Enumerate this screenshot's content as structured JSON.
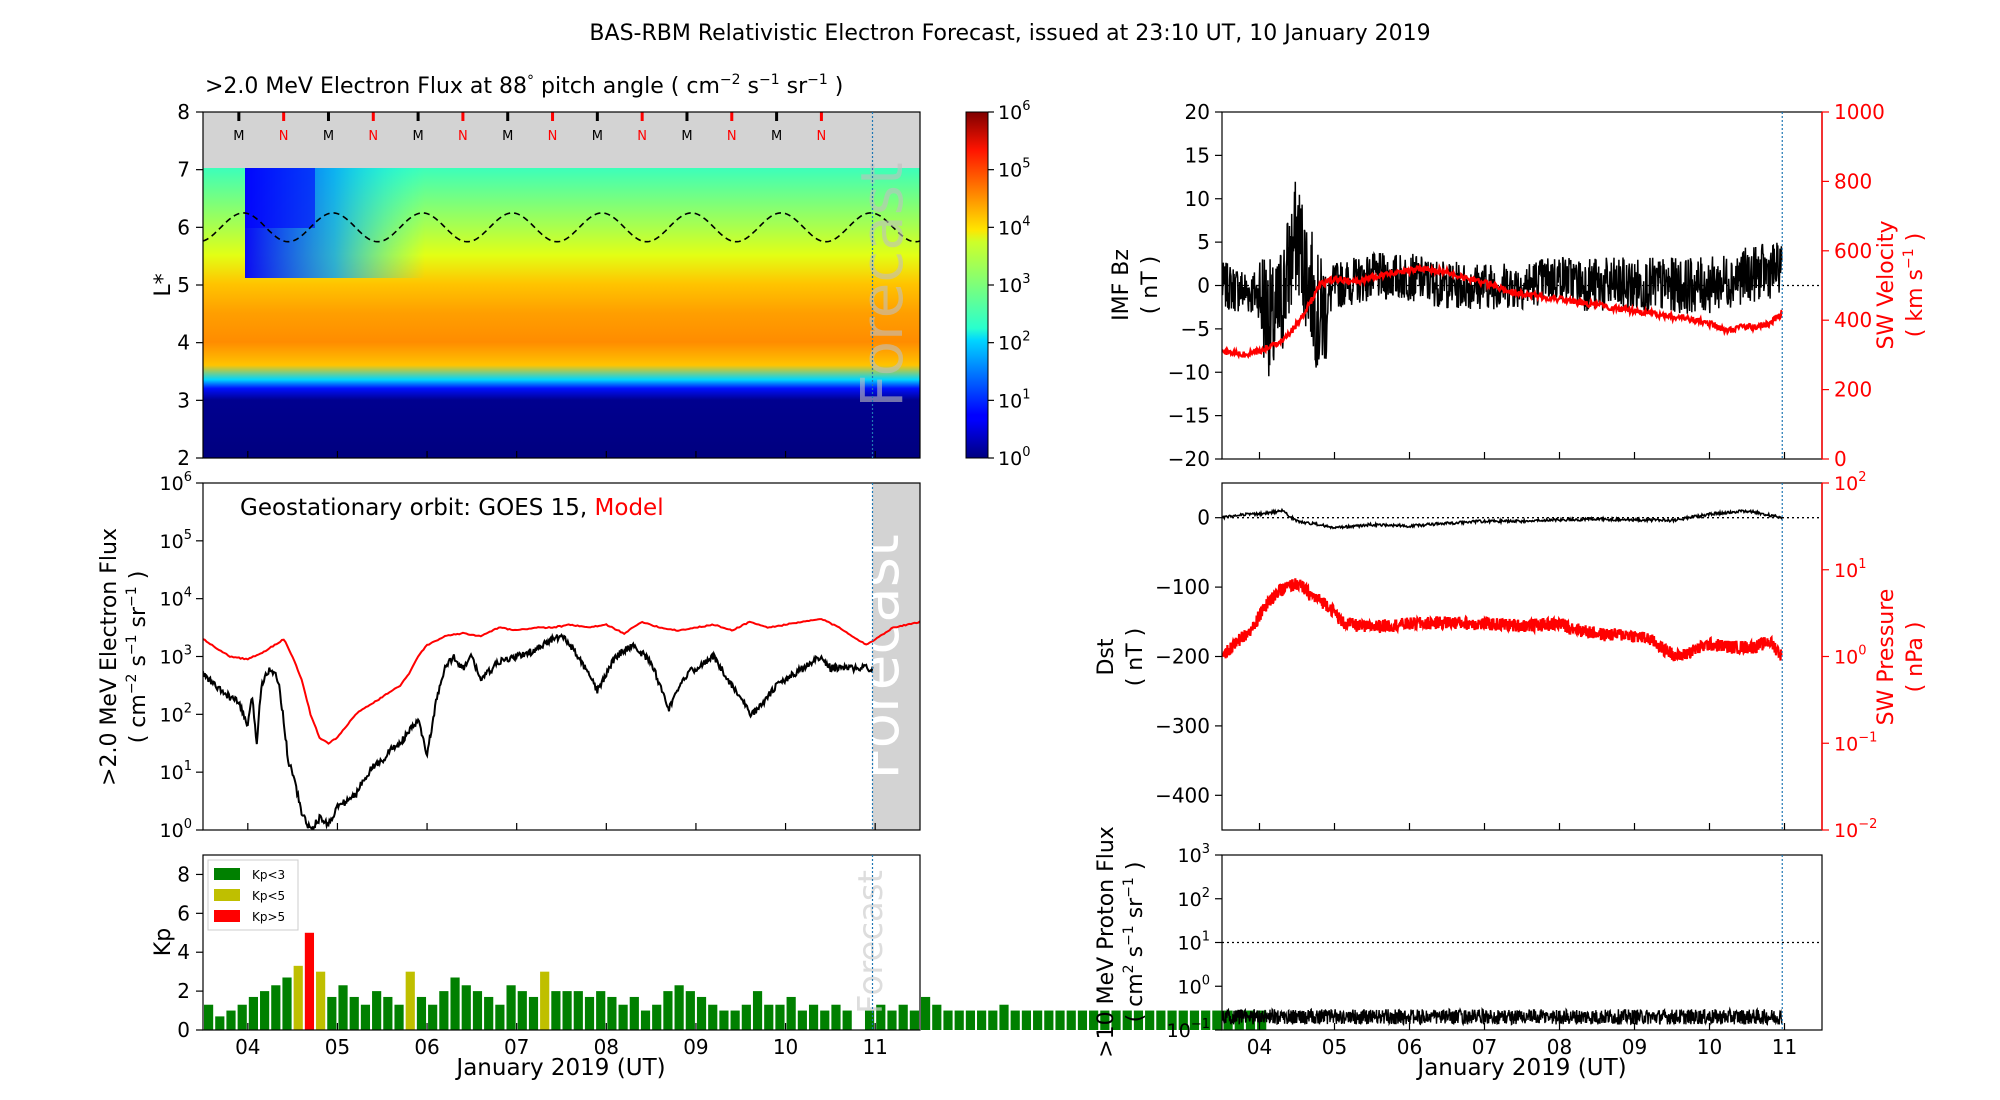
{
  "title": "BAS-RBM Relativistic Electron Forecast, issued at 23:10 UT, 10 January 2019",
  "xaxis": {
    "label": "January 2019 (UT)",
    "ticks": [
      "04",
      "05",
      "06",
      "07",
      "08",
      "09",
      "10",
      "11"
    ],
    "range_days": [
      3.5,
      11.5
    ],
    "issue_time_day": 10.97
  },
  "panels": {
    "lstar": {
      "title_main": ">2.0 MeV Electron Flux at 88",
      "title_deg": "°",
      "title_rest": " pitch angle ( cm",
      "title_u1": "−2",
      "title_s": " s",
      "title_u2": "−1",
      "title_sr": " sr",
      "title_u3": "−1",
      "title_end": " )",
      "ylabel": "L*",
      "yticks": [
        "2",
        "3",
        "4",
        "5",
        "6",
        "7",
        "8"
      ],
      "forecast_label": "Forecast",
      "mn_markers": [
        "M",
        "N",
        "M",
        "N",
        "M",
        "N",
        "M",
        "N",
        "M",
        "N",
        "M",
        "N",
        "M",
        "N"
      ],
      "colorbar_ticks": [
        "10",
        "10",
        "10",
        "10",
        "10",
        "10",
        "10"
      ],
      "colorbar_exps": [
        "0",
        "1",
        "2",
        "3",
        "4",
        "5",
        "6"
      ]
    },
    "geo": {
      "ylabel_line1": ">2.0 MeV Electron Flux",
      "ylabel_line2a": "( cm",
      "ylabel_line2b": "−2",
      "ylabel_line2c": " s",
      "ylabel_line2d": "−1",
      "ylabel_line2e": " sr",
      "ylabel_line2f": "−1",
      "ylabel_line2g": " )",
      "legend_prefix": "Geostationary orbit:   GOES 15,",
      "legend_model": "Model",
      "forecast_label": "Forecast",
      "ytick_base": "10",
      "ytick_exps": [
        "0",
        "1",
        "2",
        "3",
        "4",
        "5",
        "6"
      ]
    },
    "kp": {
      "ylabel": "Kp",
      "yticks": [
        "0",
        "2",
        "4",
        "6",
        "8"
      ],
      "forecast_label": "Forecast",
      "legend": [
        "Kp<3",
        "Kp<5",
        "Kp>5"
      ]
    },
    "imf": {
      "ylabel_line1": "IMF Bz",
      "ylabel_line2": "( nT )",
      "yticks_left": [
        "−20",
        "−15",
        "−10",
        "−5",
        "0",
        "5",
        "10",
        "15",
        "20"
      ],
      "ylabel_right_line1": "SW Velocity",
      "ylabel_right_line2": "( km s",
      "ylabel_right_exp": "−1",
      "ylabel_right_end": " )",
      "yticks_right": [
        "0",
        "200",
        "400",
        "600",
        "800",
        "1000"
      ]
    },
    "dst": {
      "ylabel_line1": "Dst",
      "ylabel_line2": "( nT )",
      "yticks_left": [
        "−400",
        "−300",
        "−200",
        "−100",
        "0"
      ],
      "ylabel_right_line1": "SW Pressure",
      "ylabel_right_line2": "( nPa )",
      "ytick_base": "10",
      "ytick_exps": [
        "−2",
        "−1",
        "0",
        "1",
        "2"
      ]
    },
    "proton": {
      "ylabel_line1": ">10 MeV Proton Flux",
      "ylabel_line2a": "( cm",
      "ylabel_line2b": "2",
      "ylabel_line2c": " s",
      "ylabel_line2d": "−1",
      "ylabel_line2e": " sr",
      "ylabel_line2f": "−1",
      "ylabel_line2g": " )",
      "ytick_base": "10",
      "ytick_exps": [
        "−1",
        "0",
        "1",
        "2",
        "3"
      ]
    }
  },
  "colors": {
    "model": "#ff0000",
    "observed": "#000000",
    "kp_low": "#008000",
    "kp_mid": "#bfbf00",
    "kp_high": "#ff0000",
    "forecast_shade": "#d3d3d3",
    "issue_line": "#1f77b4"
  },
  "chart_data": [
    {
      "type": "heatmap",
      "name": "lstar_flux",
      "x_range": [
        3.5,
        11.5
      ],
      "y_range": [
        2,
        8
      ],
      "colorbar_range_log10": [
        0,
        6
      ],
      "lstar_profile_log10": [
        [
          2.0,
          0.1
        ],
        [
          3.0,
          0.3
        ],
        [
          3.2,
          1.8
        ],
        [
          3.5,
          3.8
        ],
        [
          4.0,
          5.0
        ],
        [
          4.5,
          4.7
        ],
        [
          5.0,
          4.0
        ],
        [
          5.5,
          3.6
        ],
        [
          6.0,
          3.2
        ],
        [
          6.5,
          2.9
        ],
        [
          7.0,
          2.6
        ]
      ],
      "dropout_days": [
        3.9,
        5.2
      ],
      "magnetopause_L_mean": 6.0,
      "magnetopause_L_amplitude": 0.25
    },
    {
      "type": "line",
      "name": "geo_flux_log10",
      "series": [
        {
          "name": "GOES 15",
          "x": [
            3.5,
            3.7,
            3.9,
            4.0,
            4.05,
            4.1,
            4.15,
            4.2,
            4.25,
            4.3,
            4.35,
            4.4,
            4.45,
            4.5,
            4.6,
            4.7,
            4.8,
            4.9,
            5.0,
            5.1,
            5.2,
            5.3,
            5.4,
            5.5,
            5.6,
            5.7,
            5.8,
            5.9,
            6.0,
            6.1,
            6.2,
            6.3,
            6.4,
            6.5,
            6.6,
            6.8,
            7.0,
            7.2,
            7.4,
            7.5,
            7.6,
            7.8,
            7.9,
            8.0,
            8.1,
            8.3,
            8.5,
            8.7,
            8.8,
            8.9,
            9.0,
            9.2,
            9.4,
            9.5,
            9.6,
            9.7,
            9.8,
            9.9,
            10.0,
            10.2,
            10.4,
            10.5
          ],
          "values": [
            2.7,
            2.4,
            2.2,
            1.8,
            2.3,
            1.5,
            2.5,
            2.7,
            2.8,
            2.7,
            2.5,
            1.9,
            1.2,
            1.0,
            0.3,
            0.0,
            0.2,
            0.1,
            0.4,
            0.5,
            0.6,
            0.9,
            1.1,
            1.2,
            1.4,
            1.5,
            1.7,
            1.9,
            1.3,
            2.2,
            2.8,
            3.0,
            2.8,
            3.0,
            2.6,
            2.9,
            3.0,
            3.1,
            3.3,
            3.35,
            3.2,
            2.7,
            2.4,
            2.7,
            3.0,
            3.2,
            2.9,
            2.1,
            2.4,
            2.7,
            2.8,
            3.0,
            2.5,
            2.3,
            2.0,
            2.1,
            2.3,
            2.5,
            2.6,
            2.8,
            3.0,
            2.8
          ]
        },
        {
          "name": "Model",
          "x": [
            3.5,
            3.6,
            3.8,
            4.0,
            4.2,
            4.4,
            4.5,
            4.6,
            4.7,
            4.8,
            4.9,
            5.0,
            5.1,
            5.2,
            5.3,
            5.4,
            5.5,
            5.6,
            5.7,
            5.8,
            5.9,
            6.0,
            6.2,
            6.4,
            6.6,
            6.8,
            7.0,
            7.2,
            7.4,
            7.6,
            7.8,
            8.0,
            8.2,
            8.4,
            8.6,
            8.8,
            9.0,
            9.2,
            9.4,
            9.6,
            9.8,
            10.0,
            10.2,
            10.4,
            10.6,
            10.8,
            10.9,
            11.0,
            11.2,
            11.5
          ],
          "values": [
            3.3,
            3.2,
            3.0,
            2.95,
            3.1,
            3.3,
            3.0,
            2.6,
            2.0,
            1.6,
            1.5,
            1.6,
            1.8,
            2.0,
            2.1,
            2.2,
            2.3,
            2.4,
            2.5,
            2.7,
            3.0,
            3.2,
            3.35,
            3.4,
            3.35,
            3.5,
            3.45,
            3.5,
            3.5,
            3.55,
            3.5,
            3.55,
            3.4,
            3.6,
            3.5,
            3.45,
            3.5,
            3.55,
            3.45,
            3.6,
            3.5,
            3.55,
            3.6,
            3.65,
            3.5,
            3.3,
            3.2,
            3.3,
            3.5,
            3.6
          ]
        }
      ],
      "ylim_log10": [
        0,
        6
      ]
    },
    {
      "type": "bar",
      "name": "kp",
      "x_start": 3.5,
      "bin_days": 0.125,
      "values": [
        1.3,
        0.7,
        1.0,
        1.3,
        1.7,
        2.0,
        2.3,
        2.7,
        3.3,
        5.0,
        3.0,
        1.7,
        2.3,
        1.7,
        1.3,
        2.0,
        1.7,
        1.3,
        3.0,
        1.7,
        1.3,
        2.0,
        2.7,
        2.3,
        2.0,
        1.7,
        1.3,
        2.3,
        2.0,
        1.7,
        3.0,
        2.0,
        2.0,
        2.0,
        1.7,
        2.0,
        1.7,
        1.3,
        1.7,
        1.0,
        1.3,
        2.0,
        2.3,
        2.0,
        1.7,
        1.3,
        1.0,
        1.0,
        1.3,
        2.0,
        1.3,
        1.3,
        1.7,
        1.0,
        1.3,
        1.0,
        1.3,
        1.0,
        1.3,
        1.0,
        1.3,
        1.0,
        1.3,
        1.0,
        1.7,
        1.3,
        1.0,
        1.0,
        1.0,
        1.0,
        1.0,
        1.3,
        1.0,
        1.0,
        1.0,
        1.0,
        1.0,
        1.0,
        1.0,
        1.0,
        1.0,
        1.0,
        1.0,
        1.0,
        1.0,
        1.0,
        1.0,
        1.0,
        1.0,
        1.0,
        1.0,
        1.0,
        1.0,
        1.0,
        1.0
      ],
      "ylim": [
        0,
        9
      ]
    },
    {
      "type": "line",
      "name": "imf_sw",
      "series": [
        {
          "name": "IMF Bz",
          "x": [
            3.5,
            4.0,
            4.2,
            4.5,
            4.8,
            5.0,
            5.5,
            6.0,
            6.5,
            7.0,
            7.5,
            8.0,
            8.5,
            9.0,
            9.5,
            10.0,
            10.4,
            10.97
          ],
          "values": [
            0,
            -1,
            -5,
            6,
            -4,
            0,
            1,
            1,
            0,
            0,
            0,
            1,
            0,
            0,
            0,
            0,
            1,
            2
          ]
        },
        {
          "name": "SW Velocity",
          "x": [
            3.5,
            3.8,
            4.0,
            4.2,
            4.4,
            4.6,
            4.8,
            5.0,
            5.3,
            5.6,
            5.9,
            6.2,
            6.5,
            6.8,
            7.1,
            7.4,
            7.7,
            8.0,
            8.3,
            8.6,
            8.9,
            9.2,
            9.5,
            9.8,
            10.0,
            10.2,
            10.4,
            10.6,
            10.8,
            10.97
          ],
          "values": [
            310,
            300,
            310,
            330,
            360,
            420,
            500,
            520,
            510,
            530,
            540,
            550,
            540,
            520,
            500,
            480,
            470,
            460,
            450,
            440,
            430,
            420,
            410,
            400,
            390,
            370,
            380,
            380,
            390,
            420
          ]
        }
      ],
      "ylim_left": [
        -20,
        20
      ],
      "ylim_right": [
        0,
        1000
      ]
    },
    {
      "type": "line",
      "name": "dst_pressure",
      "series": [
        {
          "name": "Dst",
          "x": [
            3.5,
            3.8,
            4.0,
            4.3,
            4.5,
            4.8,
            5.0,
            5.5,
            6.0,
            6.5,
            7.0,
            7.5,
            8.0,
            8.5,
            9.0,
            9.5,
            10.0,
            10.5,
            10.97
          ],
          "values": [
            0,
            5,
            5,
            10,
            -5,
            -10,
            -15,
            -10,
            -12,
            -8,
            -5,
            -5,
            -3,
            -2,
            -3,
            -4,
            5,
            10,
            0
          ]
        },
        {
          "name": "SW Pressure",
          "x": [
            3.5,
            3.7,
            3.9,
            4.1,
            4.3,
            4.5,
            4.7,
            4.9,
            5.1,
            5.4,
            5.7,
            6.0,
            6.5,
            7.0,
            7.5,
            8.0,
            8.3,
            8.6,
            8.9,
            9.2,
            9.4,
            9.6,
            9.8,
            10.0,
            10.3,
            10.6,
            10.8,
            10.97
          ],
          "values": [
            1.0,
            1.5,
            2.0,
            4.0,
            6.0,
            7.0,
            5.0,
            4.0,
            2.5,
            2.2,
            2.3,
            2.4,
            2.5,
            2.4,
            2.3,
            2.4,
            2.0,
            1.8,
            1.8,
            1.6,
            1.2,
            1.0,
            1.2,
            1.4,
            1.3,
            1.3,
            1.5,
            1.0
          ]
        }
      ],
      "ylim_left": [
        -450,
        50
      ],
      "ylim_right_log10": [
        -2,
        2
      ]
    },
    {
      "type": "line",
      "name": "proton_flux_log10",
      "series": [
        {
          "name": "Proton flux",
          "x": [
            3.5,
            10.97
          ],
          "values": [
            -0.7,
            -0.7
          ]
        },
        {
          "name": "threshold",
          "x": [
            3.5,
            11.5
          ],
          "values": [
            1,
            1
          ]
        }
      ],
      "ylim_log10": [
        -1,
        3
      ]
    }
  ]
}
